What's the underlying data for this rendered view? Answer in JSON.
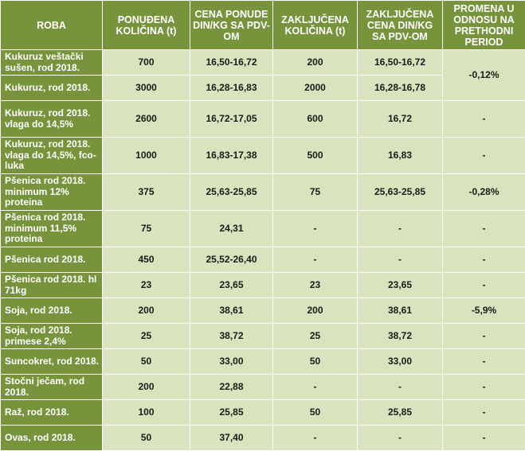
{
  "headers": [
    "ROBA",
    "PONUĐENA KOLIČINA (t)",
    "CENA PONUDE DIN/KG SA PDV-OM",
    "ZAKLJUČENA KOLIČINA (t)",
    "ZAKLJUČENA CENA DIN/KG SA PDV-OM",
    "PROMENA U ODNOSU NA PRETHODNI PERIOD"
  ],
  "rows": [
    {
      "goods": "Kukuruz veštački sušen, rod 2018.",
      "offered_qty": "700",
      "offer_price": "16,50-16,72",
      "closed_qty": "200",
      "closed_price": "16,50-16,72"
    },
    {
      "goods": "Kukuruz, rod 2018.",
      "offered_qty": "3000",
      "offer_price": "16,28-16,83",
      "closed_qty": "2000",
      "closed_price": "16,28-16,78"
    },
    {
      "goods": "Kukuruz, rod 2018. vlaga do 14,5%",
      "offered_qty": "2600",
      "offer_price": "16,72-17,05",
      "closed_qty": "600",
      "closed_price": "16,72",
      "change": "-"
    },
    {
      "goods": "Kukuruz, rod 2018. vlaga do 14,5%, fco-luka",
      "offered_qty": "1000",
      "offer_price": "16,83-17,38",
      "closed_qty": "500",
      "closed_price": "16,83",
      "change": "-"
    },
    {
      "goods": "Pšenica rod 2018. minimum 12% proteina",
      "offered_qty": "375",
      "offer_price": "25,63-25,85",
      "closed_qty": "75",
      "closed_price": "25,63-25,85",
      "change": "-0,28%"
    },
    {
      "goods": "Pšenica rod 2018. minimum 11,5% proteina",
      "offered_qty": "75",
      "offer_price": "24,31",
      "closed_qty": "-",
      "closed_price": "-",
      "change": "-"
    },
    {
      "goods": "Pšenica rod 2018.",
      "offered_qty": "450",
      "offer_price": "25,52-26,40",
      "closed_qty": "-",
      "closed_price": "-",
      "change": "-"
    },
    {
      "goods": "Pšenica rod 2018. hl 71kg",
      "offered_qty": "23",
      "offer_price": "23,65",
      "closed_qty": "23",
      "closed_price": "23,65",
      "change": "-"
    },
    {
      "goods": "Soja, rod 2018.",
      "offered_qty": "200",
      "offer_price": "38,61",
      "closed_qty": "200",
      "closed_price": "38,61",
      "change": "-5,9%"
    },
    {
      "goods": "Soja, rod 2018. primese 2,4%",
      "offered_qty": "25",
      "offer_price": "38,72",
      "closed_qty": "25",
      "closed_price": "38,72",
      "change": "-"
    },
    {
      "goods": "Suncokret, rod 2018.",
      "offered_qty": "50",
      "offer_price": "33,00",
      "closed_qty": "50",
      "closed_price": "33,00",
      "change": "-"
    },
    {
      "goods": "Stočni ječam, rod 2018.",
      "offered_qty": "200",
      "offer_price": "22,88",
      "closed_qty": "-",
      "closed_price": "-",
      "change": "-"
    },
    {
      "goods": "Raž, rod 2018.",
      "offered_qty": "100",
      "offer_price": "25,85",
      "closed_qty": "50",
      "closed_price": "25,85",
      "change": "-"
    },
    {
      "goods": "Ovas, rod 2018.",
      "offered_qty": "50",
      "offer_price": "37,40",
      "closed_qty": "-",
      "closed_price": "-",
      "change": "-"
    }
  ],
  "merged_change_rows_0_1": "-0,12%",
  "colors": {
    "header_bg": "#77933c",
    "cell_bg": "#d7e4bd",
    "border": "#ffffff"
  }
}
